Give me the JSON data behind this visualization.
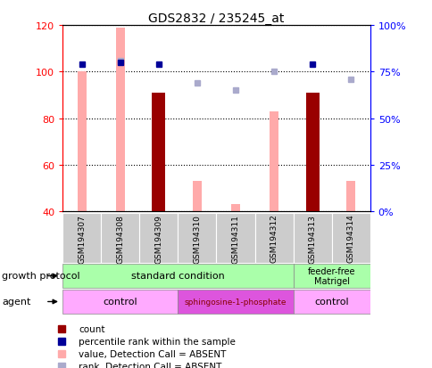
{
  "title": "GDS2832 / 235245_at",
  "samples": [
    "GSM194307",
    "GSM194308",
    "GSM194309",
    "GSM194310",
    "GSM194311",
    "GSM194312",
    "GSM194313",
    "GSM194314"
  ],
  "ylim_left": [
    40,
    120
  ],
  "ylim_right": [
    0,
    100
  ],
  "yticks_left": [
    40,
    60,
    80,
    100,
    120
  ],
  "yticks_right": [
    0,
    25,
    50,
    75,
    100
  ],
  "count_values": [
    null,
    null,
    91,
    null,
    null,
    null,
    91,
    null
  ],
  "count_color": "#990000",
  "percentile_values": [
    79,
    80,
    79,
    null,
    null,
    null,
    79,
    null
  ],
  "percentile_color": "#000099",
  "value_absent": [
    100,
    119,
    null,
    53,
    43,
    83,
    null,
    53
  ],
  "value_absent_color": "#ffaaaa",
  "rank_absent": [
    null,
    81,
    null,
    69,
    65,
    75,
    null,
    71
  ],
  "rank_absent_color": "#aaaacc",
  "background_color": "#ffffff"
}
